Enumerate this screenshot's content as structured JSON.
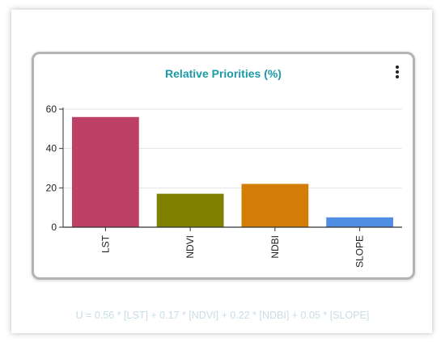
{
  "card": {
    "title": "Relative Priorities (%)"
  },
  "formula": "U =  0.56 * [LST] + 0.17 * [NDVI] + 0.22 * [NDBI] + 0.05 * [SLOPE]",
  "chart_data": {
    "type": "bar",
    "title": "Relative Priorities (%)",
    "xlabel": "",
    "ylabel": "",
    "categories": [
      "LST",
      "NDVI",
      "NDBI",
      "SLOPE"
    ],
    "values": [
      56,
      17,
      22,
      5
    ],
    "colors": [
      "#bd4066",
      "#7f7f00",
      "#d27d06",
      "#4f8ee2"
    ],
    "ylim": [
      0,
      60
    ],
    "yticks": [
      0,
      20,
      40,
      60
    ],
    "grid": true,
    "legend": "none"
  }
}
